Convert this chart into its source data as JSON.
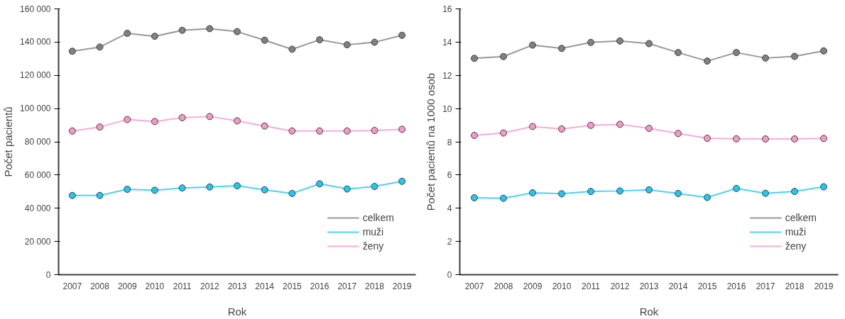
{
  "chart_data": [
    {
      "type": "line",
      "xlabel": "Rok",
      "ylabel": "Počet pacientů",
      "categories": [
        "2007",
        "2008",
        "2009",
        "2010",
        "2011",
        "2012",
        "2013",
        "2014",
        "2015",
        "2016",
        "2017",
        "2018",
        "2019"
      ],
      "ylim": [
        0,
        160000
      ],
      "yticks": [
        {
          "value": 0,
          "label": "0"
        },
        {
          "value": 20000,
          "label": "20 000"
        },
        {
          "value": 40000,
          "label": "40 000"
        },
        {
          "value": 60000,
          "label": "60 000"
        },
        {
          "value": 80000,
          "label": "80 000"
        },
        {
          "value": 100000,
          "label": "100 000"
        },
        {
          "value": 120000,
          "label": "120 000"
        },
        {
          "value": 140000,
          "label": "140 000"
        },
        {
          "value": 160000,
          "label": "160 000"
        }
      ],
      "grid": false,
      "legend": "bottom right",
      "marker": "circle",
      "line_style": "solid",
      "series": [
        {
          "name": "celkem",
          "color": "#808080",
          "values": [
            134500,
            137000,
            145300,
            143500,
            147100,
            148100,
            146300,
            141100,
            135700,
            141400,
            138400,
            139900,
            144100
          ]
        },
        {
          "name": "muži",
          "color": "#1ec8f0",
          "values": [
            47700,
            47700,
            51400,
            50800,
            52200,
            52800,
            53500,
            51100,
            48900,
            54700,
            51600,
            53100,
            56200
          ]
        },
        {
          "name": "ženy",
          "color": "#f598c8",
          "values": [
            86500,
            88900,
            93400,
            92200,
            94500,
            95200,
            92600,
            89500,
            86500,
            86500,
            86500,
            86800,
            87500
          ]
        }
      ]
    },
    {
      "type": "line",
      "xlabel": "Rok",
      "ylabel": "Počet pacientů na 1000 osob",
      "categories": [
        "2007",
        "2008",
        "2009",
        "2010",
        "2011",
        "2012",
        "2013",
        "2014",
        "2015",
        "2016",
        "2017",
        "2018",
        "2019"
      ],
      "ylim": [
        0,
        16
      ],
      "yticks": [
        0,
        2,
        4,
        6,
        8,
        10,
        12,
        14,
        16
      ],
      "grid": false,
      "legend": "bottom right",
      "marker": "circle",
      "line_style": "solid",
      "series": [
        {
          "name": "celkem",
          "color": "#808080",
          "values": [
            13.02,
            13.13,
            13.82,
            13.62,
            13.98,
            14.07,
            13.91,
            13.37,
            12.86,
            13.37,
            13.04,
            13.14,
            13.47
          ]
        },
        {
          "name": "muži",
          "color": "#1ec8f0",
          "values": [
            4.63,
            4.6,
            4.93,
            4.87,
            5.01,
            5.04,
            5.11,
            4.89,
            4.65,
            5.19,
            4.9,
            5.01,
            5.29
          ]
        },
        {
          "name": "ženy",
          "color": "#f598c8",
          "values": [
            8.38,
            8.53,
            8.92,
            8.77,
            8.99,
            9.05,
            8.81,
            8.5,
            8.21,
            8.18,
            8.17,
            8.17,
            8.2
          ]
        }
      ]
    }
  ]
}
